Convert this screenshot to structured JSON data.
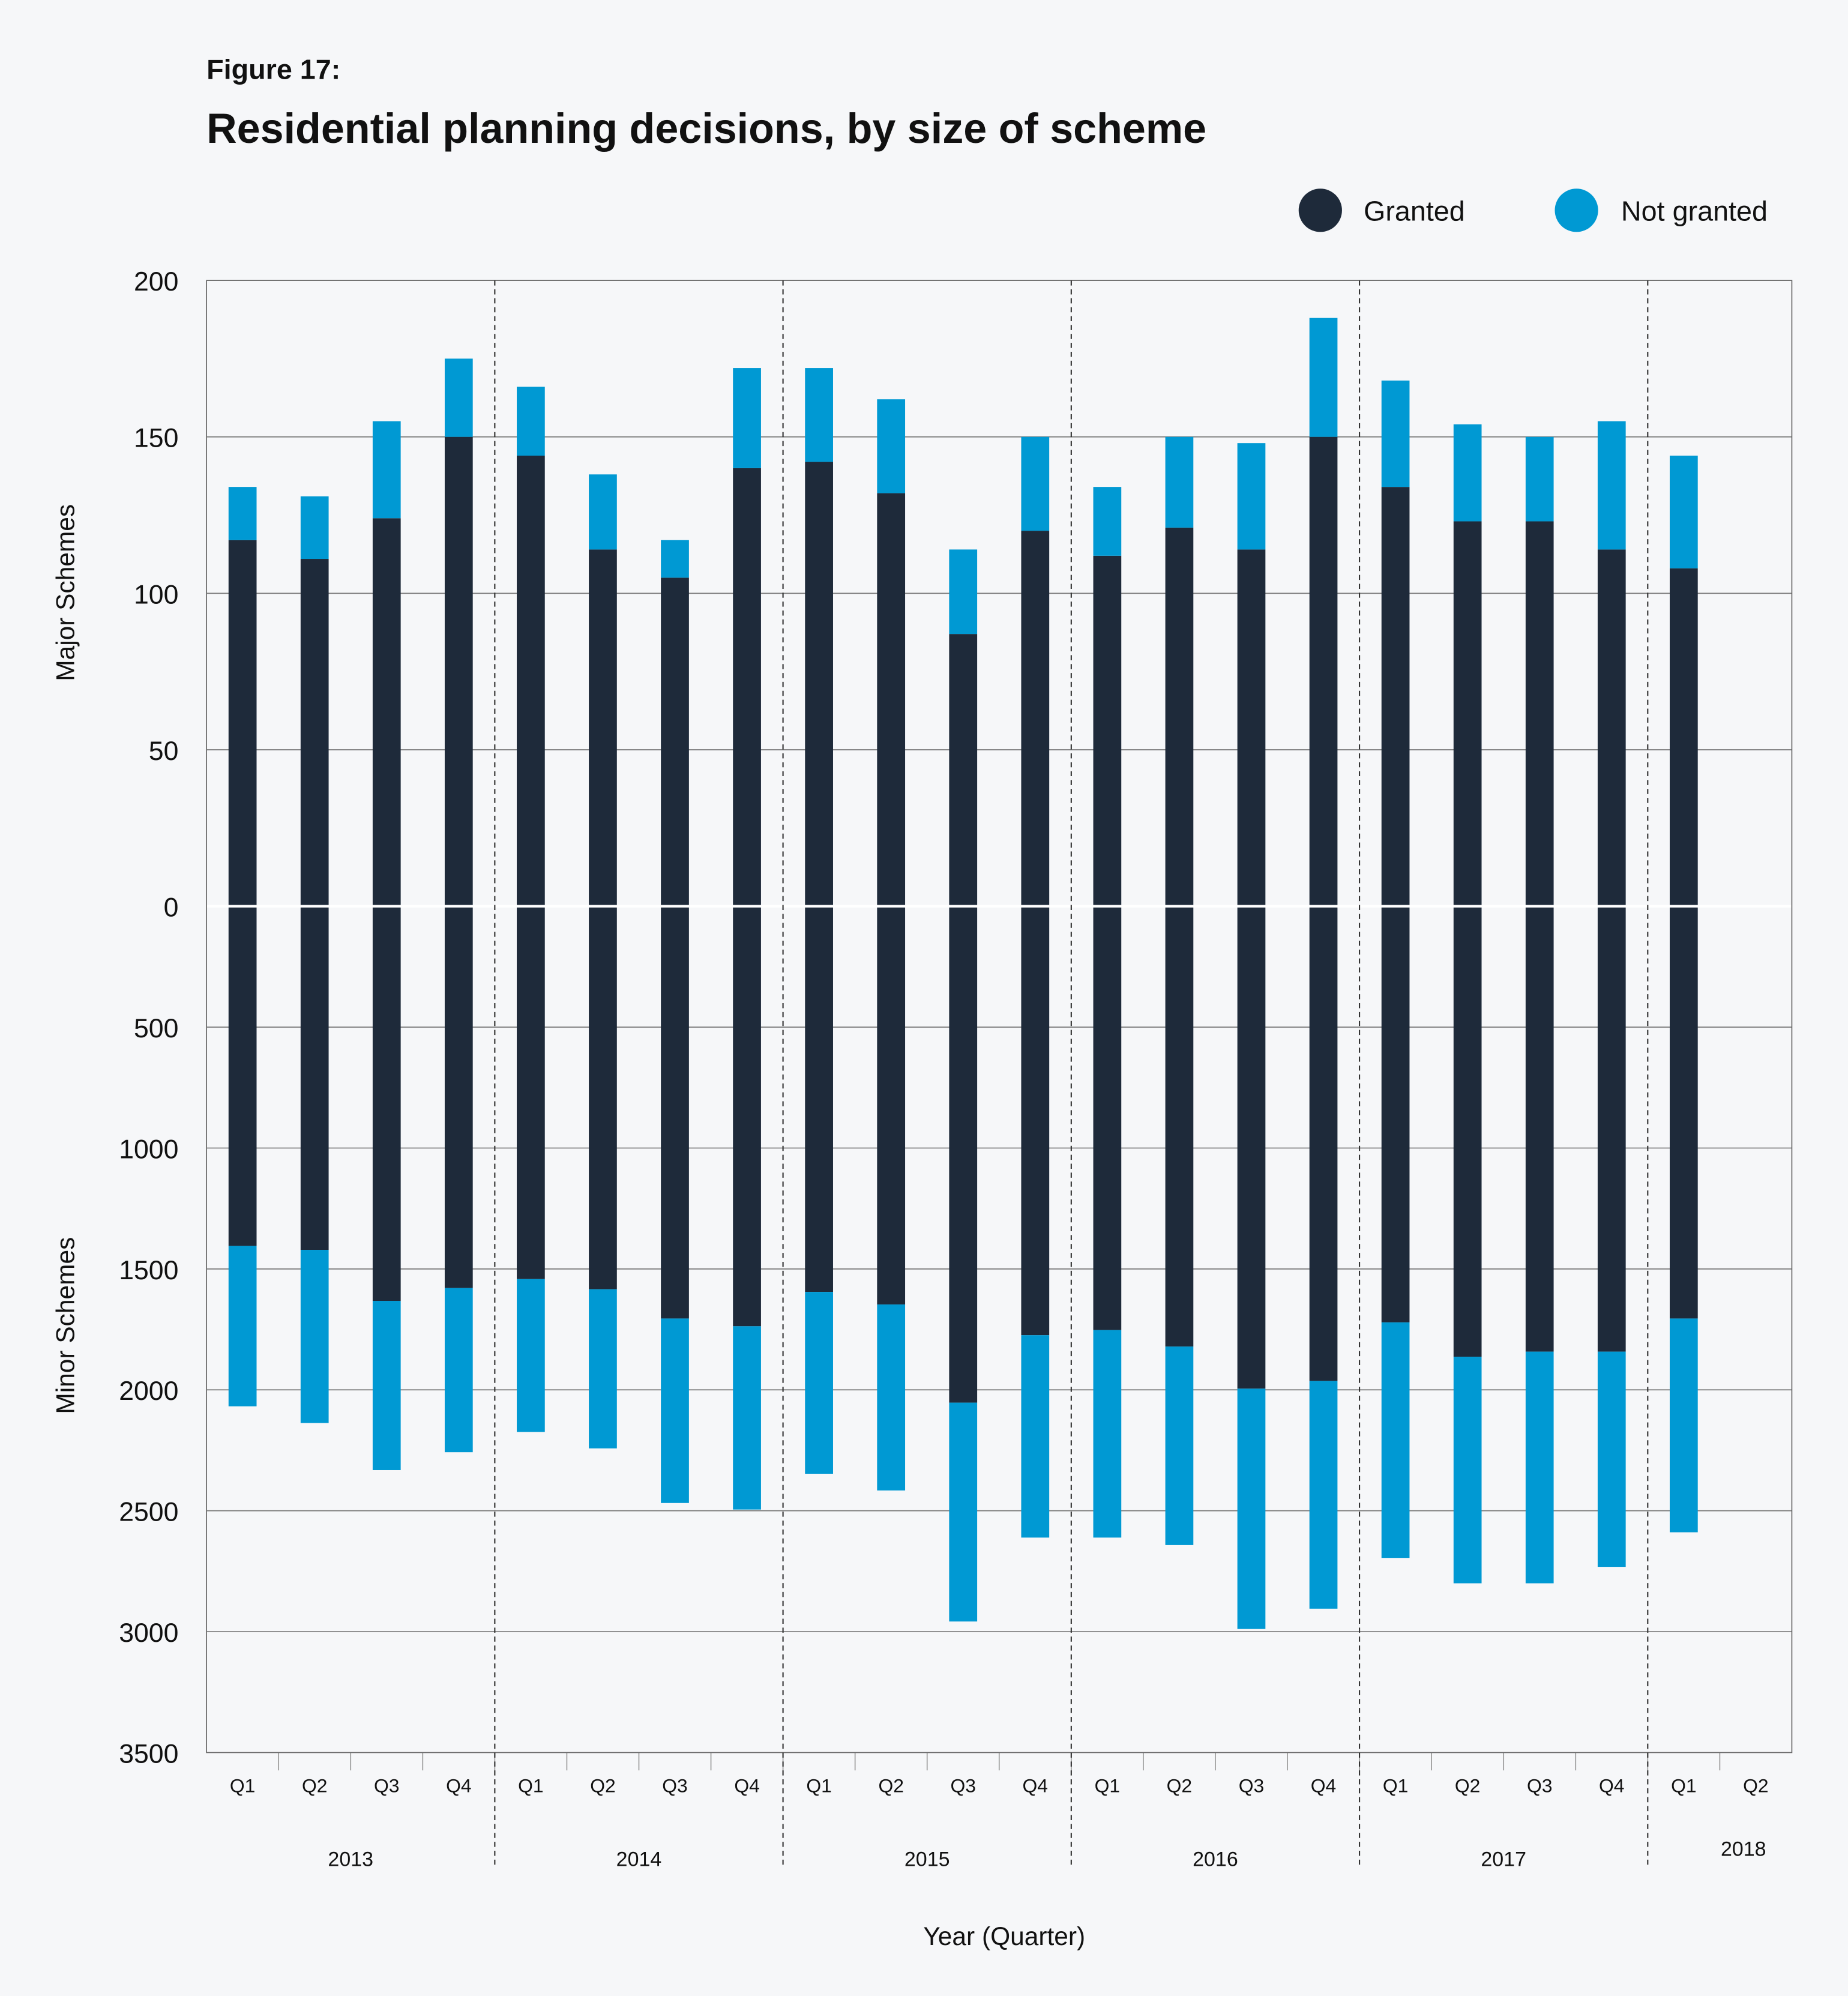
{
  "figure_label": "Figure 17:",
  "title": "Residential planning decisions, by size of scheme",
  "colors": {
    "background": "#f6f7f9",
    "granted": "#1e2a3a",
    "not_granted": "#0099d3"
  },
  "chart_data": {
    "type": "bar",
    "stacked": true,
    "mirrored": true,
    "legend": {
      "placement": "top-right",
      "items": [
        "Granted",
        "Not granted"
      ]
    },
    "xlabel": "Year (Quarter)",
    "categories": [
      "Q1",
      "Q2",
      "Q3",
      "Q4",
      "Q1",
      "Q2",
      "Q3",
      "Q4",
      "Q1",
      "Q2",
      "Q3",
      "Q4",
      "Q1",
      "Q2",
      "Q3",
      "Q4",
      "Q1",
      "Q2",
      "Q3",
      "Q4",
      "Q1",
      "Q2"
    ],
    "years": [
      "2013",
      "2014",
      "2015",
      "2016",
      "2017",
      "2018"
    ],
    "upper": {
      "ylabel": "Major Schemes",
      "ylim": [
        0,
        200
      ],
      "ticks": [
        "200",
        "150",
        "100",
        "50",
        "0"
      ],
      "series": [
        {
          "name": "Granted",
          "values": [
            117,
            111,
            124,
            150,
            144,
            114,
            105,
            140,
            142,
            132,
            87,
            120,
            112,
            121,
            114,
            150,
            134,
            123,
            123,
            114,
            108,
            null
          ]
        },
        {
          "name": "Not granted",
          "values": [
            17,
            20,
            31,
            25,
            22,
            24,
            12,
            32,
            30,
            30,
            27,
            30,
            22,
            29,
            34,
            38,
            34,
            31,
            27,
            41,
            36,
            null
          ]
        }
      ]
    },
    "lower": {
      "ylabel": "Minor Schemes",
      "ylim": [
        0,
        3500
      ],
      "ticks": [
        "500",
        "1000",
        "1500",
        "2000",
        "2500",
        "3000",
        "3500"
      ],
      "series": [
        {
          "name": "Granted",
          "values": [
            1405,
            1421,
            1632,
            1579,
            1542,
            1584,
            1705,
            1737,
            1595,
            1647,
            2053,
            1774,
            1753,
            1821,
            1995,
            1963,
            1721,
            1863,
            1842,
            1842,
            1705,
            null
          ]
        },
        {
          "name": "Not granted",
          "values": [
            663,
            716,
            700,
            679,
            632,
            658,
            763,
            758,
            752,
            769,
            905,
            837,
            858,
            821,
            994,
            942,
            974,
            937,
            958,
            890,
            884,
            null
          ]
        }
      ]
    },
    "grid": true
  }
}
